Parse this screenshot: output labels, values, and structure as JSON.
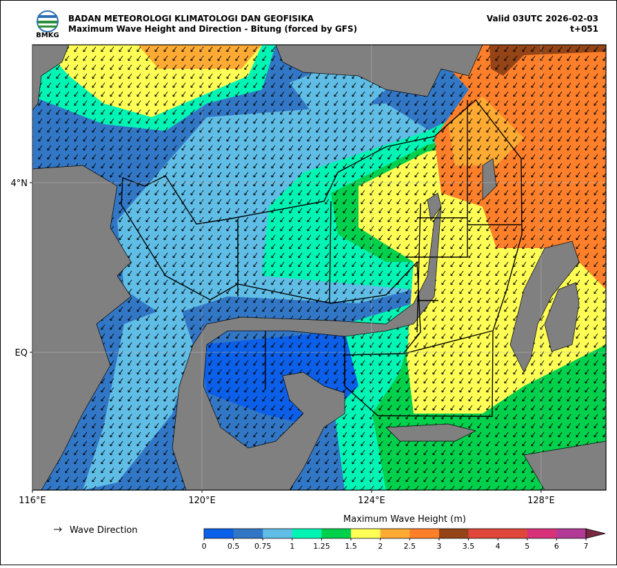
{
  "header": {
    "agency": "BADAN METEOROLOGI KLIMATOLOGI DAN GEOFISIKA",
    "title": "Maximum Wave Height and Direction - Bitung (forced by GFS)",
    "valid": "Valid 03UTC 2026-02-03",
    "lead": "t+051",
    "logo": "BMKG"
  },
  "map": {
    "xlim": [
      116,
      129.53
    ],
    "ylim": [
      -3.25,
      7.25
    ],
    "xticks": [
      {
        "value": 116,
        "label": "116°E"
      },
      {
        "value": 120,
        "label": "120°E"
      },
      {
        "value": 124,
        "label": "124°E"
      },
      {
        "value": 128,
        "label": "128°E"
      }
    ],
    "yticks": [
      {
        "value": 4,
        "label": "4°N"
      },
      {
        "value": 0,
        "label": "EQ"
      }
    ],
    "grid": true
  },
  "legend": {
    "label": "Wave Direction"
  },
  "colorbar": {
    "title": "Maximum Wave Height (m)",
    "bounds": [
      0,
      0.5,
      0.75,
      1,
      1.25,
      1.5,
      2,
      2.5,
      3,
      3.5,
      4,
      5,
      6,
      7
    ],
    "colors": [
      "#0b5fe8",
      "#3277c6",
      "#5fbde6",
      "#00f5b5",
      "#00d04c",
      "#ffff55",
      "#ffaa33",
      "#ff7f2a",
      "#944416",
      "#e0473a",
      "#e0473a",
      "#d8317a",
      "#b23a96"
    ],
    "extend_color": "#7a2840"
  }
}
